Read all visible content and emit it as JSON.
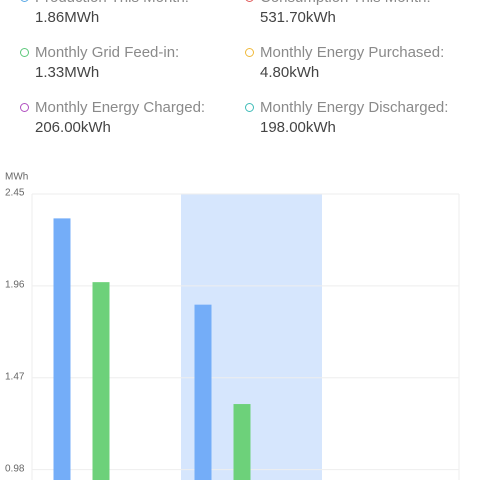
{
  "stats": [
    {
      "label": "Production This Month:",
      "value": "1.86MWh",
      "color": "#5aa9e6"
    },
    {
      "label": "Consumption This Month:",
      "value": "531.70kWh",
      "color": "#e05a5a"
    },
    {
      "label": "Monthly Grid Feed-in:",
      "value": "1.33MWh",
      "color": "#5cc87a"
    },
    {
      "label": "Monthly Energy Purchased:",
      "value": "4.80kWh",
      "color": "#f0b93a"
    },
    {
      "label": "Monthly Energy Charged:",
      "value": "206.00kWh",
      "color": "#b04fc0"
    },
    {
      "label": "Monthly Energy Discharged:",
      "value": "198.00kWh",
      "color": "#3fbcb8"
    }
  ],
  "chart_data": {
    "type": "bar",
    "unit": "MWh",
    "categories": [
      null,
      null,
      null
    ],
    "series": [
      {
        "color": "#74adf8",
        "values": [
          2.32,
          1.86,
          null
        ]
      },
      {
        "color": "#6dd17a",
        "values": [
          1.98,
          1.33,
          null
        ]
      }
    ],
    "ylim": [
      0.925,
      2.45
    ],
    "yticks": [
      0.98,
      1.47,
      1.96,
      2.45
    ],
    "grid": true,
    "highlight": 1,
    "highlight_color": "#d6e6fd"
  }
}
